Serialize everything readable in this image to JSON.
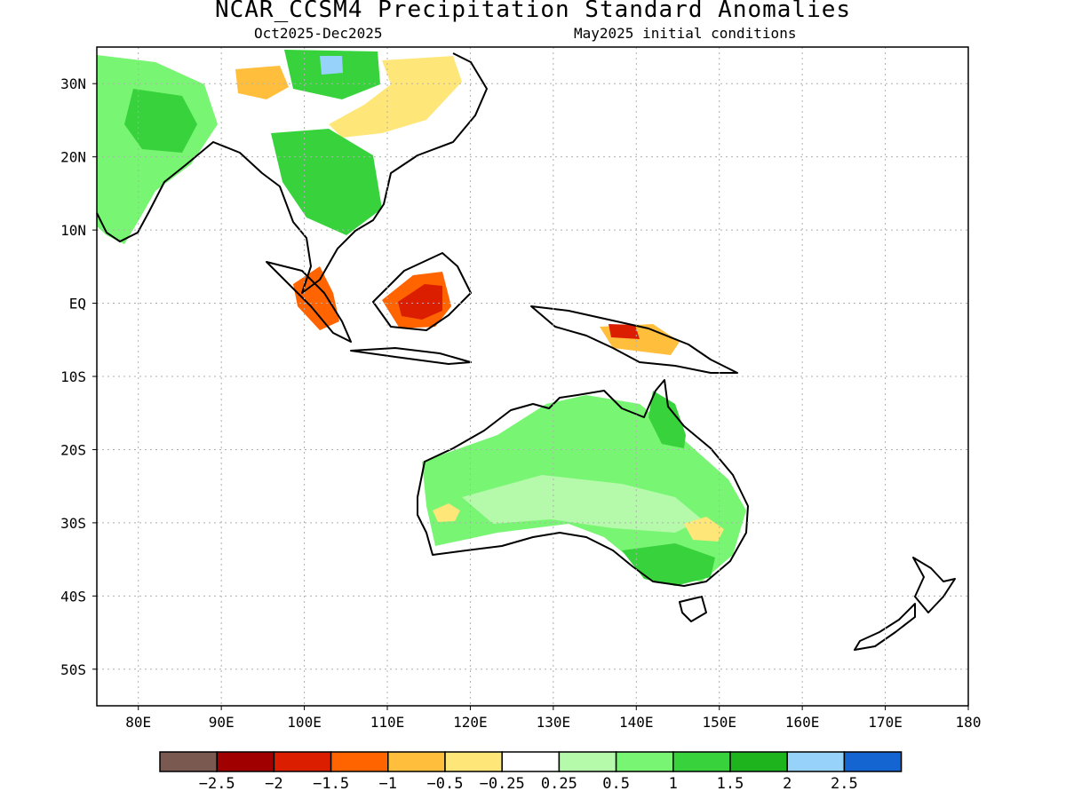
{
  "header": {
    "title": "NCAR_CCSM4 Precipitation Standard Anomalies",
    "period": "Oct2025-Dec2025",
    "init": "May2025 initial conditions"
  },
  "map": {
    "lon_range": [
      75,
      180
    ],
    "lat_range": [
      -55,
      35
    ],
    "grid": "dotted",
    "x_ticks": [
      {
        "lon": 80,
        "label": "80E"
      },
      {
        "lon": 90,
        "label": "90E"
      },
      {
        "lon": 100,
        "label": "100E"
      },
      {
        "lon": 110,
        "label": "110E"
      },
      {
        "lon": 120,
        "label": "120E"
      },
      {
        "lon": 130,
        "label": "130E"
      },
      {
        "lon": 140,
        "label": "140E"
      },
      {
        "lon": 150,
        "label": "150E"
      },
      {
        "lon": 160,
        "label": "160E"
      },
      {
        "lon": 170,
        "label": "170E"
      },
      {
        "lon": 180,
        "label": "180"
      }
    ],
    "y_ticks": [
      {
        "lat": 30,
        "label": "30N"
      },
      {
        "lat": 20,
        "label": "20N"
      },
      {
        "lat": 10,
        "label": "10N"
      },
      {
        "lat": 0,
        "label": "EQ"
      },
      {
        "lat": -10,
        "label": "10S"
      },
      {
        "lat": -20,
        "label": "20S"
      },
      {
        "lat": -30,
        "label": "30S"
      },
      {
        "lat": -40,
        "label": "40S"
      },
      {
        "lat": -50,
        "label": "50S"
      }
    ]
  },
  "colorbar": {
    "colors": [
      "#7a5a50",
      "#a00000",
      "#dc1e00",
      "#ff6400",
      "#ffbe3c",
      "#ffe678",
      "#ffffff",
      "#b4faaa",
      "#78f573",
      "#37d23c",
      "#1eb41e",
      "#96d2fa",
      "#1464d2"
    ],
    "labels": [
      "−2.5",
      "−2",
      "−1.5",
      "−1",
      "−0.5",
      "−0.25",
      "0.25",
      "0.5",
      "1",
      "1.5",
      "2",
      "2.5"
    ]
  },
  "anomaly_regions": [
    {
      "name": "india",
      "value": 0.75
    },
    {
      "name": "central-india",
      "value": 1.25
    },
    {
      "name": "tibet-north",
      "value": 1.25
    },
    {
      "name": "tibet-core",
      "value": 2.25
    },
    {
      "name": "myanmar",
      "value": -0.75
    },
    {
      "name": "china-east",
      "value": -0.375
    },
    {
      "name": "indochina",
      "value": 1.25
    },
    {
      "name": "sumatra",
      "value": -1.25
    },
    {
      "name": "borneo",
      "value": -1.25
    },
    {
      "name": "borneo-core",
      "value": -1.75
    },
    {
      "name": "new-guinea",
      "value": -0.75
    },
    {
      "name": "new-guinea-core",
      "value": -1.75
    },
    {
      "name": "australia-north",
      "value": 0.75
    },
    {
      "name": "queensland",
      "value": 1.25
    },
    {
      "name": "australia-central",
      "value": 0.375
    },
    {
      "name": "australia-southeast",
      "value": 1.25
    },
    {
      "name": "western-australia-dry",
      "value": -0.375
    },
    {
      "name": "nsw-dry",
      "value": -0.375
    }
  ]
}
